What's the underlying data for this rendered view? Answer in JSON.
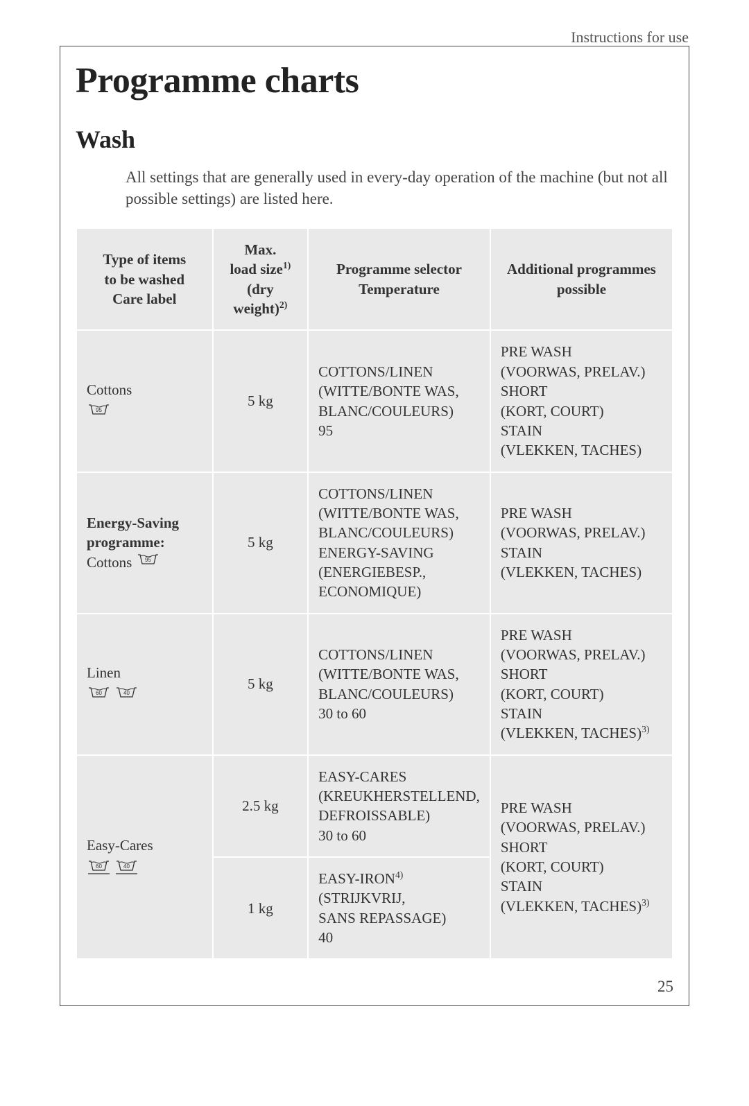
{
  "header": {
    "right_text": "Instructions for use"
  },
  "title": "Programme charts",
  "subtitle": "Wash",
  "intro": "All settings that are generally used in every-day operation of the machine (but not all possible settings) are listed here.",
  "page_number": "25",
  "table": {
    "columns": [
      {
        "line1": "Type of items",
        "line2": "to be washed",
        "line3": "Care label"
      },
      {
        "line1": "Max.",
        "line2_html": "load size<sup>1)</sup>",
        "line3_html": "(dry weight)<sup>2)</sup>"
      },
      {
        "line1": "Programme selector",
        "line2": "Temperature"
      },
      {
        "line1": "Additional programmes",
        "line2": "possible"
      }
    ],
    "rows": [
      {
        "type_label": "Cottons",
        "icons": [
          "95"
        ],
        "load": "5 kg",
        "programme": "COTTONS/LINEN\n(WITTE/BONTE WAS,\nBLANC/COULEURS)\n95",
        "additional": "PRE WASH\n(VOORWAS, PRELAV.)\nSHORT\n(KORT, COURT)\nSTAIN\n(VLEKKEN, TACHES)"
      },
      {
        "type_label_bold1": "Energy-Saving",
        "type_label_bold2": "programme:",
        "type_label_plain": "Cottons",
        "icons_inline": [
          "95"
        ],
        "load": "5 kg",
        "programme": "COTTONS/LINEN\n(WITTE/BONTE WAS,\nBLANC/COULEURS)\nENERGY-SAVING\n(ENERGIEBESP.,\nECONOMIQUE)",
        "additional": "PRE WASH\n(VOORWAS, PRELAV.)\nSTAIN\n(VLEKKEN, TACHES)"
      },
      {
        "type_label": "Linen",
        "icons": [
          "60",
          "40"
        ],
        "load": "5 kg",
        "programme": "COTTONS/LINEN\n(WITTE/BONTE WAS,\nBLANC/COULEURS)\n30 to 60",
        "additional_html": "PRE WASH<br>(VOORWAS, PRELAV.)<br>SHORT<br>(KORT, COURT)<br>STAIN<br>(VLEKKEN, TACHES)<sup>3)</sup>"
      },
      {
        "type_label": "Easy-Cares",
        "icons": [
          "60",
          "40"
        ],
        "icons_underlined": true,
        "load_a": "2.5 kg",
        "programme_a": "EASY-CARES\n(KREUKHERSTELLEND,\nDEFROISSABLE)\n30 to 60",
        "load_b": "1 kg",
        "programme_b_html": "EASY-IRON<sup>4)</sup><br>(STRIJKVRIJ,<br>SANS REPASSAGE)<br>40",
        "additional_html": "PRE WASH<br>(VOORWAS, PRELAV.)<br>SHORT<br>(KORT, COURT)<br>STAIN<br>(VLEKKEN, TACHES)<sup>3)</sup>"
      }
    ]
  },
  "colors": {
    "cell_bg": "#e9e9e9",
    "text": "#333333",
    "border": "#444444"
  }
}
